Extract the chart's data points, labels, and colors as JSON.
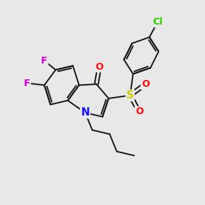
{
  "background_color": "#e8e8e8",
  "bond_color": "#1a1a1a",
  "bond_width": 1.5,
  "atom_colors": {
    "N": "#1010ff",
    "O": "#ff1010",
    "S": "#cccc00",
    "F": "#dd00dd",
    "Cl": "#33cc00",
    "C": "#1a1a1a"
  },
  "font_size": 10,
  "fig_size": [
    3.0,
    3.0
  ],
  "dpi": 100
}
